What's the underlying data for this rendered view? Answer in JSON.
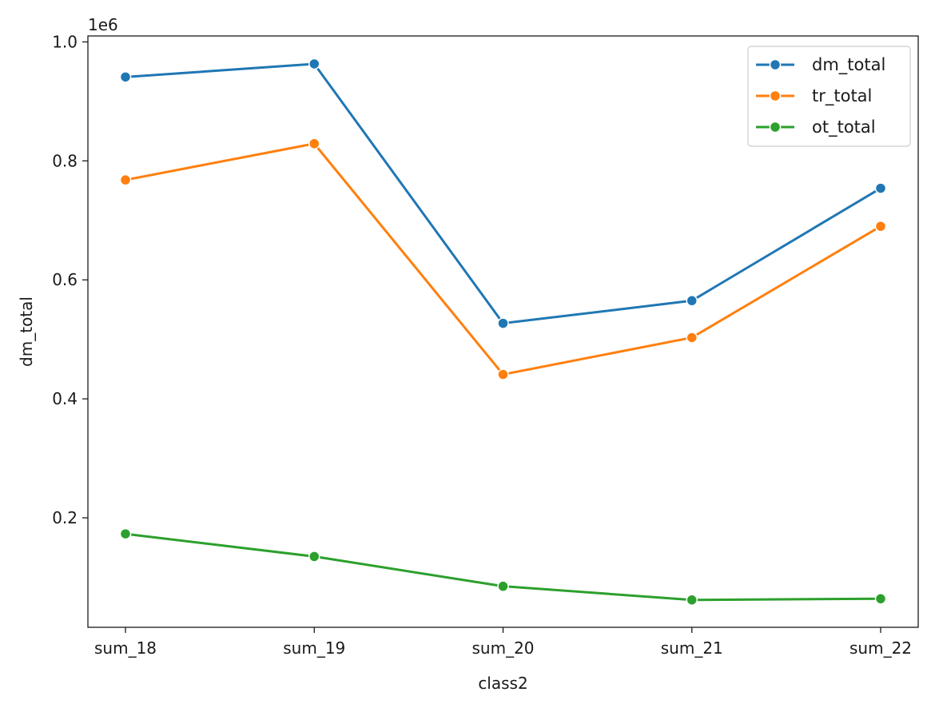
{
  "chart_data": {
    "type": "line",
    "title": "",
    "xlabel": "class2",
    "ylabel": "dm_total",
    "y_offset_label": "1e6",
    "categories": [
      "sum_18",
      "sum_19",
      "sum_20",
      "sum_21",
      "sum_22"
    ],
    "yticks": [
      {
        "value": 0.2,
        "label": "0.2"
      },
      {
        "value": 0.4,
        "label": "0.4"
      },
      {
        "value": 0.6,
        "label": "0.6"
      },
      {
        "value": 0.8,
        "label": "0.8"
      },
      {
        "value": 1.0,
        "label": "1.0"
      }
    ],
    "ylim": [
      0.016,
      1.01
    ],
    "grid": false,
    "legend_position": "top-right",
    "series": [
      {
        "name": "dm_total",
        "color": "#1f77b4",
        "values": [
          0.941,
          0.963,
          0.527,
          0.565,
          0.754
        ]
      },
      {
        "name": "tr_total",
        "color": "#ff7f0e",
        "values": [
          0.768,
          0.829,
          0.441,
          0.503,
          0.69
        ]
      },
      {
        "name": "ot_total",
        "color": "#2ca02c",
        "values": [
          0.173,
          0.135,
          0.085,
          0.062,
          0.064
        ]
      }
    ]
  }
}
